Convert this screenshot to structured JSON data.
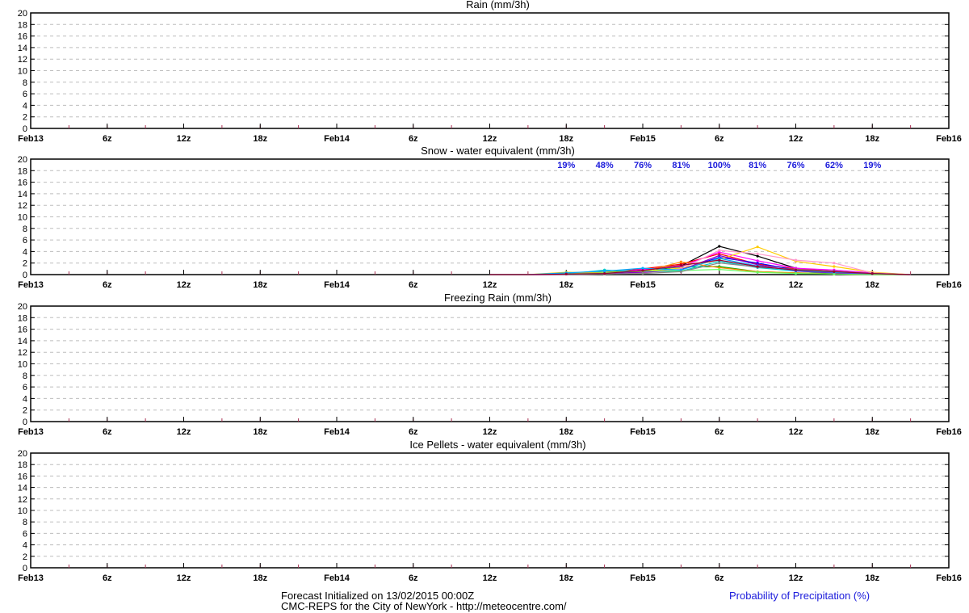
{
  "chart_data": [
    {
      "type": "line",
      "title": "Rain (mm/3h)",
      "ylim": [
        0,
        20
      ],
      "y_ticks": [
        "0",
        "2",
        "4",
        "6",
        "8",
        "10",
        "12",
        "14",
        "16",
        "18",
        "20"
      ],
      "x_tick_labels": [
        "Feb13",
        "6z",
        "12z",
        "18z",
        "Feb14",
        "6z",
        "12z",
        "18z",
        "Feb15",
        "6z",
        "12z",
        "18z",
        "Feb16"
      ],
      "grid": true,
      "series": []
    },
    {
      "type": "line",
      "title": "Snow - water equivalent (mm/3h)",
      "ylim": [
        0,
        20
      ],
      "y_ticks": [
        "0",
        "2",
        "4",
        "6",
        "8",
        "10",
        "12",
        "14",
        "16",
        "18",
        "20"
      ],
      "x_tick_labels": [
        "Feb13",
        "6z",
        "12z",
        "18z",
        "Feb14",
        "6z",
        "12z",
        "18z",
        "Feb15",
        "6z",
        "12z",
        "18z",
        "Feb16"
      ],
      "grid": true,
      "probabilities": [
        {
          "x_hour": 42,
          "label": "19%"
        },
        {
          "x_hour": 45,
          "label": "48%"
        },
        {
          "x_hour": 48,
          "label": "76%"
        },
        {
          "x_hour": 51,
          "label": "81%"
        },
        {
          "x_hour": 54,
          "label": "100%"
        },
        {
          "x_hour": 57,
          "label": "81%"
        },
        {
          "x_hour": 60,
          "label": "76%"
        },
        {
          "x_hour": 63,
          "label": "62%"
        },
        {
          "x_hour": 66,
          "label": "19%"
        }
      ],
      "x_hours": [
        36,
        39,
        42,
        45,
        48,
        51,
        54,
        57,
        60,
        63,
        66,
        69
      ],
      "series": [
        {
          "color": "#000000",
          "values": [
            0,
            0,
            0.1,
            0.2,
            0.4,
            1.5,
            4.9,
            3.2,
            1.1,
            0.5,
            0.2,
            0
          ]
        },
        {
          "color": "#ff0000",
          "values": [
            0,
            0,
            0.2,
            0.3,
            1.0,
            1.8,
            3.6,
            1.8,
            1.0,
            0.6,
            0.2,
            0
          ]
        },
        {
          "color": "#0000ff",
          "values": [
            0,
            0,
            0.1,
            0.3,
            0.6,
            0.9,
            3.0,
            2.0,
            0.8,
            0.4,
            0.1,
            0
          ]
        },
        {
          "color": "#00aa00",
          "values": [
            0,
            0,
            0.2,
            0.4,
            0.8,
            1.3,
            1.4,
            0.5,
            0.3,
            0.2,
            0.1,
            0
          ]
        },
        {
          "color": "#ff00ff",
          "values": [
            0,
            0,
            0,
            0.2,
            0.9,
            1.4,
            3.9,
            2.4,
            1.1,
            0.8,
            0.3,
            0
          ]
        },
        {
          "color": "#00cccc",
          "values": [
            0,
            0,
            0.1,
            0.8,
            0.5,
            0.6,
            2.3,
            1.2,
            0.6,
            0.3,
            0.1,
            0
          ]
        },
        {
          "color": "#ffcc00",
          "values": [
            0,
            0,
            0.4,
            0.3,
            0.6,
            1.1,
            2.6,
            4.8,
            2.3,
            1.4,
            0.4,
            0
          ]
        },
        {
          "color": "#ff99cc",
          "values": [
            0,
            0,
            0,
            0.1,
            0.3,
            1.0,
            4.2,
            3.6,
            2.5,
            2.0,
            0.3,
            0
          ]
        },
        {
          "color": "#ff8800",
          "values": [
            0,
            0,
            0.1,
            0.4,
            0.5,
            2.2,
            1.2,
            0.5,
            0.3,
            0.1,
            0,
            0
          ]
        },
        {
          "color": "#8800cc",
          "values": [
            0,
            0,
            0,
            0.2,
            0.4,
            0.8,
            3.3,
            1.7,
            0.6,
            0.3,
            0.1,
            0
          ]
        },
        {
          "color": "#66ff66",
          "values": [
            0,
            0,
            0.1,
            0.3,
            0.6,
            0.7,
            0.9,
            0.4,
            0.2,
            0.1,
            0,
            0
          ]
        },
        {
          "color": "#00aaff",
          "values": [
            0,
            0,
            0.3,
            0.6,
            1.1,
            0.8,
            2.8,
            1.5,
            0.7,
            0.4,
            0.2,
            0
          ]
        },
        {
          "color": "#888888",
          "values": [
            0,
            0,
            0,
            0.1,
            0.2,
            0.5,
            2.0,
            1.3,
            0.9,
            0.6,
            0.2,
            0
          ]
        },
        {
          "color": "#990033",
          "values": [
            0,
            0,
            0.1,
            0.2,
            0.7,
            1.6,
            2.5,
            1.4,
            0.8,
            0.5,
            0.2,
            0
          ]
        }
      ]
    },
    {
      "type": "line",
      "title": "Freezing Rain (mm/3h)",
      "ylim": [
        0,
        20
      ],
      "y_ticks": [
        "0",
        "2",
        "4",
        "6",
        "8",
        "10",
        "12",
        "14",
        "16",
        "18",
        "20"
      ],
      "x_tick_labels": [
        "Feb13",
        "6z",
        "12z",
        "18z",
        "Feb14",
        "6z",
        "12z",
        "18z",
        "Feb15",
        "6z",
        "12z",
        "18z",
        "Feb16"
      ],
      "grid": true,
      "series": []
    },
    {
      "type": "line",
      "title": "Ice Pellets - water equivalent (mm/3h)",
      "ylim": [
        0,
        20
      ],
      "y_ticks": [
        "0",
        "2",
        "4",
        "6",
        "8",
        "10",
        "12",
        "14",
        "16",
        "18",
        "20"
      ],
      "x_tick_labels": [
        "Feb13",
        "6z",
        "12z",
        "18z",
        "Feb14",
        "6z",
        "12z",
        "18z",
        "Feb15",
        "6z",
        "12z",
        "18z",
        "Feb16"
      ],
      "grid": true,
      "series": []
    }
  ],
  "footer": {
    "init": "Forecast Initialized on 13/02/2015 00:00Z",
    "source": "CMC-REPS for the City of NewYork - http://meteocentre.com/",
    "legend": "Probability of Precipitation (%)",
    "legend_color": "#1a1adb"
  }
}
